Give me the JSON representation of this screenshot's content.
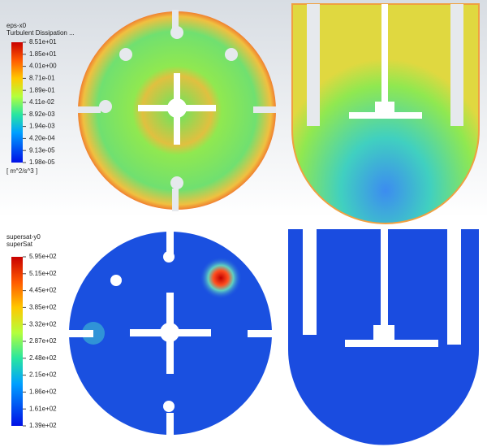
{
  "panels": [
    {
      "legend": {
        "title": [
          "eps-x0",
          "Turbulent Dissipation ..."
        ],
        "labels": [
          "8.51e+01",
          "1.85e+01",
          "4.01e+00",
          "8.71e-01",
          "1.89e-01",
          "4.11e-02",
          "8.92e-03",
          "1.94e-03",
          "4.20e-04",
          "9.13e-05",
          "1.98e-05"
        ],
        "unit": "[ m^2/s^3 ]"
      }
    },
    {
      "legend": {
        "title": [
          "supersat-y0",
          "superSat"
        ],
        "labels": [
          "5.95e+02",
          "5.15e+02",
          "4.45e+02",
          "3.85e+02",
          "3.32e+02",
          "2.87e+02",
          "2.48e+02",
          "2.15e+02",
          "1.86e+02",
          "1.61e+02",
          "1.39e+02"
        ]
      }
    }
  ]
}
